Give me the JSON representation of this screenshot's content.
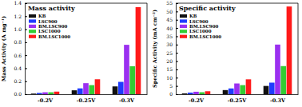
{
  "chart_data": [
    {
      "type": "bar",
      "title": "Mass activity",
      "y_label": "Mass Activity (A mg⁻¹)",
      "categories": [
        "-0.2V",
        "-0.25V",
        "-0.3V"
      ],
      "series": [
        {
          "name": "KB",
          "color": "#111111",
          "values": [
            0.01,
            0.06,
            0.12
          ]
        },
        {
          "name": "LSC900",
          "color": "#1f3cff",
          "values": [
            0.02,
            0.09,
            0.19
          ]
        },
        {
          "name": "BM.LSC900",
          "color": "#9b30f0",
          "values": [
            0.03,
            0.17,
            0.76
          ]
        },
        {
          "name": "LSC1000",
          "color": "#33cc33",
          "values": [
            0.03,
            0.14,
            0.43
          ]
        },
        {
          "name": "BM.LSC1000",
          "color": "#ff1a1a",
          "values": [
            0.04,
            0.23,
            1.34
          ]
        }
      ],
      "ylim": [
        0,
        1.4
      ],
      "yticks": [
        {
          "value": 0,
          "label": "0.0"
        },
        {
          "value": 0.2,
          "label": "0.2"
        },
        {
          "value": 0.4,
          "label": "0.4"
        },
        {
          "value": 0.6,
          "label": "0.6"
        },
        {
          "value": 0.8,
          "label": "0.8"
        },
        {
          "value": 1,
          "label": "1.0"
        },
        {
          "value": 1.2,
          "label": "1.2"
        },
        {
          "value": 1.4,
          "label": "1.4"
        }
      ],
      "grid": false,
      "legend": "upper left"
    },
    {
      "type": "bar",
      "title": "Specific activity",
      "y_label": "Specific Activity (mA cm⁻²)",
      "categories": [
        "-0.2V",
        "-0.25V",
        "-0.3V"
      ],
      "series": [
        {
          "name": "KB",
          "color": "#111111",
          "values": [
            0.5,
            2.5,
            5
          ]
        },
        {
          "name": "LSC900",
          "color": "#1f3cff",
          "values": [
            1.0,
            3.5,
            7
          ]
        },
        {
          "name": "BM.LSC900",
          "color": "#9b30f0",
          "values": [
            1.5,
            6.5,
            30
          ]
        },
        {
          "name": "LSC1000",
          "color": "#33cc33",
          "values": [
            1.2,
            5.5,
            17
          ]
        },
        {
          "name": "BM.LSC1000",
          "color": "#ff1a1a",
          "values": [
            1.8,
            9,
            53
          ]
        }
      ],
      "ylim": [
        0,
        55
      ],
      "yticks": [
        0,
        5,
        10,
        15,
        20,
        25,
        30,
        35,
        40,
        45,
        50,
        55
      ],
      "grid": false,
      "legend": "upper left"
    }
  ]
}
